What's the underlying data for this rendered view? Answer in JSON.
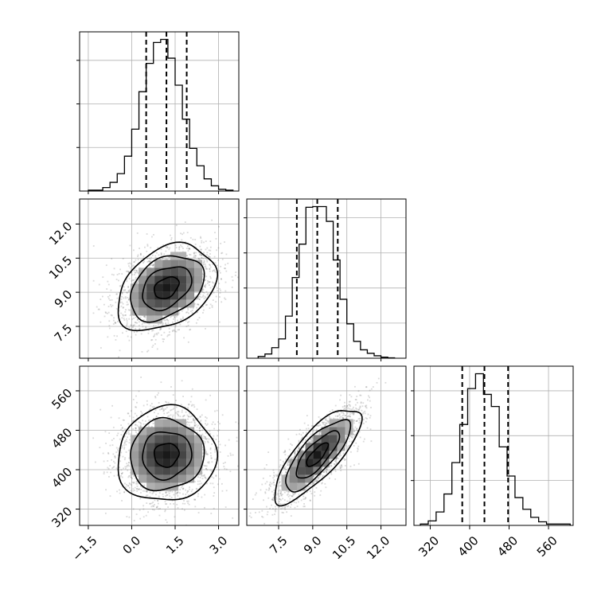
{
  "chart_data": {
    "type": "corner",
    "parameters": [
      {
        "ticks": [
          -1.5,
          0.0,
          1.5,
          3.0
        ],
        "tick_labels": [
          "−1.5",
          "0.0",
          "1.5",
          "3.0"
        ],
        "range": [
          -1.8,
          3.7
        ],
        "quantiles": [
          0.5,
          1.2,
          1.9
        ]
      },
      {
        "ticks": [
          7.5,
          9.0,
          10.5,
          12.0
        ],
        "tick_labels": [
          "7.5",
          "9.0",
          "10.5",
          "12.0"
        ],
        "range": [
          6.1,
          13.1
        ],
        "quantiles": [
          8.3,
          9.2,
          10.1
        ]
      },
      {
        "ticks": [
          320,
          400,
          480,
          560
        ],
        "tick_labels": [
          "320",
          "400",
          "480",
          "560"
        ],
        "range": [
          287,
          610
        ],
        "quantiles": [
          385,
          430,
          478
        ]
      }
    ],
    "histograms": [
      {
        "edges": [
          -1.5,
          -1.25,
          -1.0,
          -0.75,
          -0.5,
          -0.25,
          0.0,
          0.25,
          0.5,
          0.75,
          1.0,
          1.25,
          1.5,
          1.75,
          2.0,
          2.25,
          2.5,
          2.75,
          3.0,
          3.25,
          3.5
        ],
        "counts": [
          2,
          2,
          8,
          20,
          40,
          80,
          142,
          228,
          293,
          341,
          348,
          305,
          243,
          165,
          98,
          58,
          28,
          12,
          4,
          2
        ]
      },
      {
        "edges": [
          6.6,
          6.9,
          7.2,
          7.5,
          7.8,
          8.1,
          8.4,
          8.7,
          9.0,
          9.3,
          9.6,
          9.9,
          10.2,
          10.5,
          10.8,
          11.1,
          11.4,
          11.7,
          12.0,
          12.3,
          12.6
        ],
        "counts": [
          5,
          12,
          30,
          55,
          120,
          230,
          325,
          430,
          432,
          432,
          390,
          280,
          168,
          98,
          48,
          24,
          14,
          7,
          3,
          1
        ]
      },
      {
        "edges": [
          300,
          316,
          332,
          348,
          364,
          380,
          396,
          412,
          428,
          444,
          460,
          476,
          492,
          508,
          524,
          540,
          556,
          572,
          588,
          604
        ],
        "counts": [
          3,
          10,
          30,
          70,
          140,
          225,
          305,
          338,
          292,
          265,
          175,
          110,
          62,
          36,
          18,
          8,
          3,
          3,
          3
        ]
      }
    ],
    "pairs": [
      {
        "x": 0,
        "y": 1,
        "mean": [
          1.2,
          9.2
        ],
        "sd": [
          0.85,
          0.95
        ],
        "corr": 0.35
      },
      {
        "x": 0,
        "y": 2,
        "mean": [
          1.2,
          430
        ],
        "sd": [
          0.85,
          48
        ],
        "corr": 0.05
      },
      {
        "x": 1,
        "y": 2,
        "mean": [
          9.2,
          430
        ],
        "sd": [
          0.95,
          48
        ],
        "corr": 0.78
      }
    ],
    "grid": true,
    "quantile_line_style": "dashed"
  }
}
